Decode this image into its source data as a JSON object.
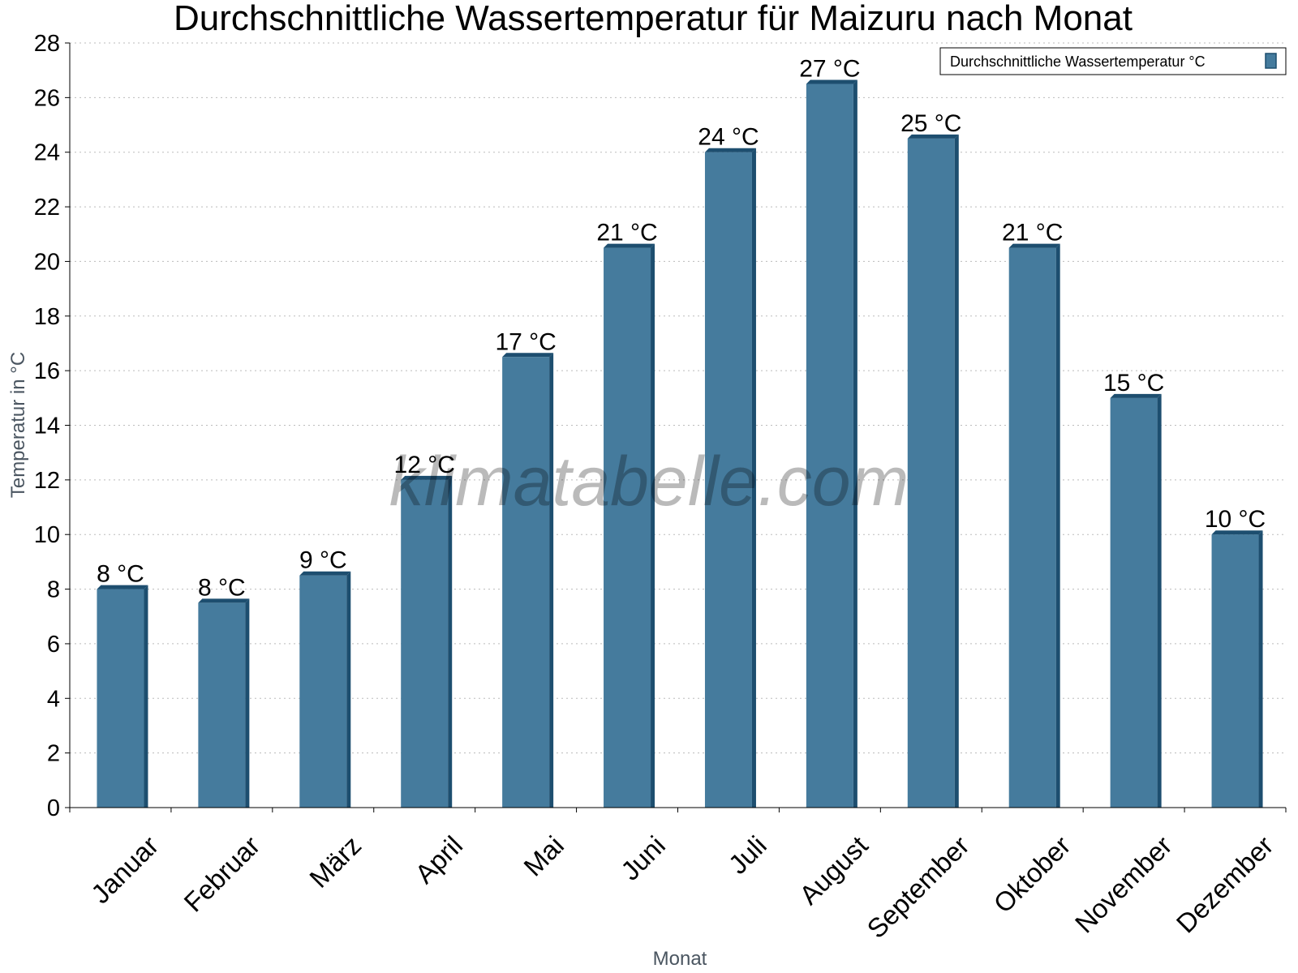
{
  "chart_data": {
    "type": "bar",
    "title": "Durchschnittliche Wassertemperatur für Maizuru nach Monat",
    "xlabel": "Monat",
    "ylabel": "Temperatur in °C",
    "categories": [
      "Januar",
      "Februar",
      "März",
      "April",
      "Mai",
      "Juni",
      "Juli",
      "August",
      "September",
      "Oktober",
      "November",
      "Dezember"
    ],
    "series": [
      {
        "name": "Durchschnittliche Wassertemperatur °C",
        "values": [
          8,
          7.5,
          8.5,
          12,
          16.5,
          20.5,
          24,
          26.5,
          24.5,
          20.5,
          15,
          10
        ],
        "labels": [
          "8 °C",
          "8 °C",
          "9 °C",
          "12 °C",
          "17 °C",
          "21 °C",
          "24 °C",
          "27 °C",
          "25 °C",
          "21 °C",
          "15 °C",
          "10 °C"
        ],
        "color": "#457b9d",
        "edge_color": "#1d4e6f"
      }
    ],
    "ylim": [
      0,
      28
    ],
    "yticks": [
      0,
      2,
      4,
      6,
      8,
      10,
      12,
      14,
      16,
      18,
      20,
      22,
      24,
      26,
      28
    ],
    "grid": "horizontal-dotted",
    "legend_position": "top-right",
    "watermark": "klimatabelle.com"
  }
}
